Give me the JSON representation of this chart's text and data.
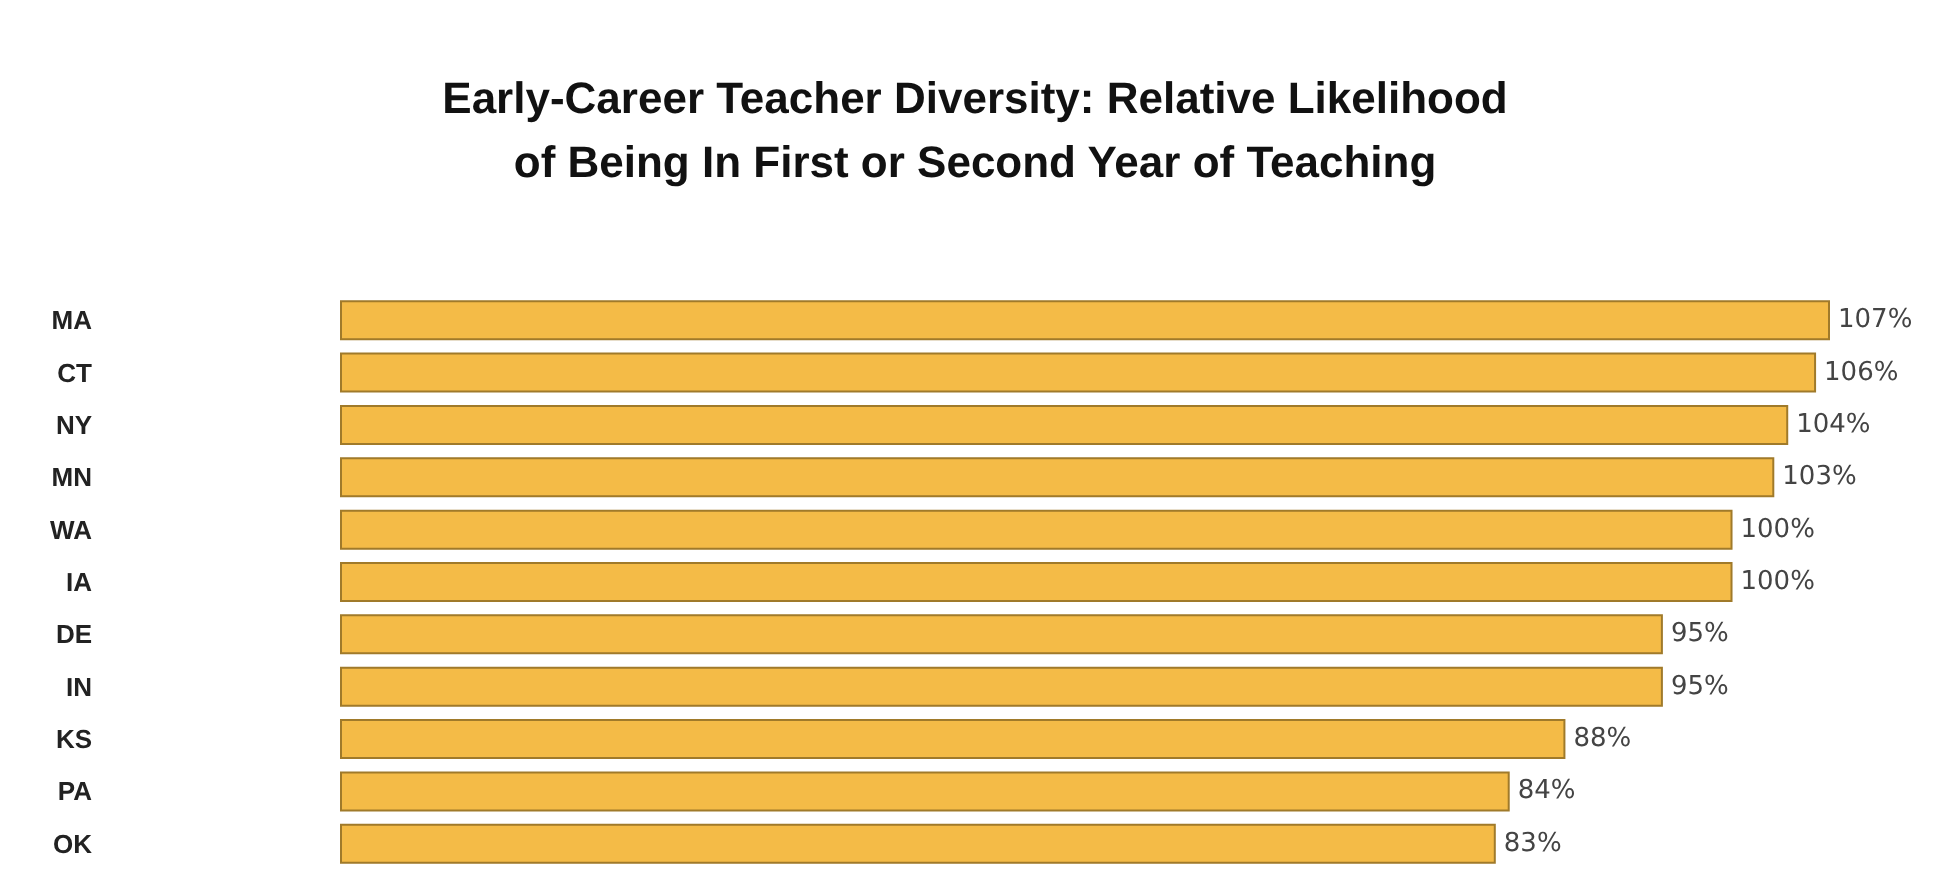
{
  "chart_data": {
    "type": "bar",
    "orientation": "horizontal",
    "title": "Early-Career Teacher Diversity: Relative Likelihood\nof Being In First or Second Year of Teaching",
    "categories": [
      "MA",
      "CT",
      "NY",
      "MN",
      "WA",
      "IA",
      "DE",
      "IN",
      "KS",
      "PA",
      "OK"
    ],
    "values": [
      107,
      106,
      104,
      103,
      100,
      100,
      95,
      95,
      88,
      84,
      83
    ],
    "value_labels": [
      "107%",
      "106%",
      "104%",
      "103%",
      "100%",
      "100%",
      "95%",
      "95%",
      "88%",
      "84%",
      "83%"
    ],
    "color": "#f4bb47"
  }
}
